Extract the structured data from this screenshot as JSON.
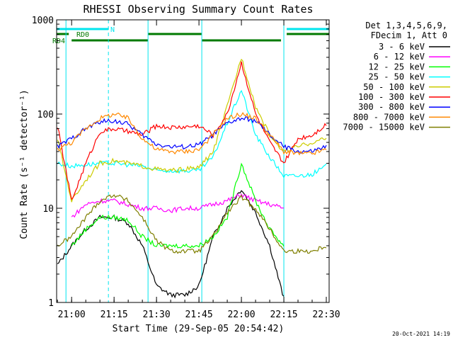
{
  "chart_data": {
    "type": "line",
    "title": "RHESSI Observing Summary Count Rates",
    "xlabel": "Start Time (29-Sep-05 20:54:42)",
    "ylabel": "Count Rate (s⁻¹ detector⁻¹)",
    "y_scale": "log",
    "ylim": [
      1,
      1000
    ],
    "xlim": [
      "20:54:42",
      "22:31:00"
    ],
    "x_ticks": [
      "21:00",
      "21:15",
      "21:30",
      "21:45",
      "22:00",
      "22:15",
      "22:30"
    ],
    "y_ticks": [
      "1",
      "10",
      "100",
      "1000"
    ],
    "legend_header": [
      "Det 1,3,4,5,6,9,",
      "FDecim 1, Att 0"
    ],
    "legend_placement": "right",
    "timestamp": "20-Oct-2021 14:19",
    "flags": [
      {
        "label": "N",
        "color": "#00e5ee",
        "segments": [
          [
            "20:54:42",
            "21:13:00"
          ],
          [
            "22:16:00",
            "22:31:00"
          ]
        ]
      },
      {
        "label": "RD0",
        "color": "#007a00",
        "segments": [
          [
            "20:54:42",
            "20:59:00"
          ],
          [
            "21:27:00",
            "21:46:00"
          ],
          [
            "22:16:00",
            "22:31:00"
          ]
        ]
      },
      {
        "label": "RD4",
        "color": "#007a00",
        "segments": [
          [
            "21:00:00",
            "21:27:00"
          ],
          [
            "21:46:00",
            "22:14:00"
          ]
        ]
      }
    ],
    "vlines": [
      "21:13:00",
      "22:31:00"
    ],
    "cyan_vlines": [
      "20:58:00",
      "21:27:00",
      "21:46:00",
      "22:15:00"
    ],
    "x": [
      "20:55",
      "21:00",
      "21:05",
      "21:10",
      "21:15",
      "21:20",
      "21:25",
      "21:30",
      "21:35",
      "21:40",
      "21:45",
      "21:50",
      "21:55",
      "22:00",
      "22:05",
      "22:10",
      "22:15",
      "22:20",
      "22:25",
      "22:30"
    ],
    "series": [
      {
        "name": "3 - 6 keV",
        "color": "#000000",
        "values": [
          2.5,
          4,
          6,
          8,
          8,
          7,
          4,
          1.5,
          1.2,
          1.2,
          1.5,
          5,
          10,
          16,
          9,
          4,
          1.1,
          null,
          null,
          null
        ]
      },
      {
        "name": "6 - 12 keV",
        "color": "#ff00ff",
        "values": [
          null,
          8,
          11,
          12,
          12,
          11,
          10,
          10,
          9.5,
          10,
          10,
          11,
          12,
          14,
          12,
          11,
          10,
          null,
          null,
          null
        ]
      },
      {
        "name": "12 - 25 keV",
        "color": "#00ff00",
        "values": [
          null,
          4,
          6,
          8,
          8,
          7.5,
          5,
          4,
          4,
          4,
          4,
          5,
          8,
          30,
          12,
          6,
          4,
          null,
          null,
          null
        ]
      },
      {
        "name": "25 - 50 keV",
        "color": "#00ffff",
        "values": [
          30,
          28,
          29,
          30,
          30,
          29,
          28,
          25,
          25,
          25,
          25,
          35,
          80,
          180,
          60,
          35,
          22,
          22,
          23,
          28
        ]
      },
      {
        "name": "50 - 100 keV",
        "color": "#cccc00",
        "values": [
          55,
          12,
          20,
          30,
          32,
          30,
          28,
          26,
          25,
          26,
          27,
          40,
          120,
          400,
          120,
          60,
          40,
          45,
          50,
          55
        ]
      },
      {
        "name": "100 - 300 keV",
        "color": "#ff0000",
        "values": [
          75,
          12,
          30,
          65,
          70,
          65,
          60,
          75,
          72,
          73,
          75,
          60,
          100,
          350,
          100,
          50,
          30,
          55,
          60,
          78
        ]
      },
      {
        "name": "300 - 800 keV",
        "color": "#0000ff",
        "values": [
          45,
          55,
          70,
          83,
          85,
          78,
          60,
          48,
          45,
          45,
          47,
          60,
          80,
          90,
          85,
          60,
          45,
          40,
          40,
          45
        ]
      },
      {
        "name": "800 - 7000 keV",
        "color": "#ff8800",
        "values": [
          42,
          50,
          70,
          90,
          100,
          90,
          55,
          42,
          40,
          40,
          42,
          60,
          90,
          100,
          90,
          60,
          40,
          38,
          38,
          42
        ]
      },
      {
        "name": "7000 - 15000 keV",
        "color": "#7f7f00",
        "values": [
          4,
          5,
          8,
          12,
          14,
          12,
          8,
          4.5,
          3.5,
          3.5,
          3.5,
          5,
          9,
          13,
          10,
          6,
          3.5,
          3.5,
          3.5,
          4
        ]
      }
    ]
  }
}
